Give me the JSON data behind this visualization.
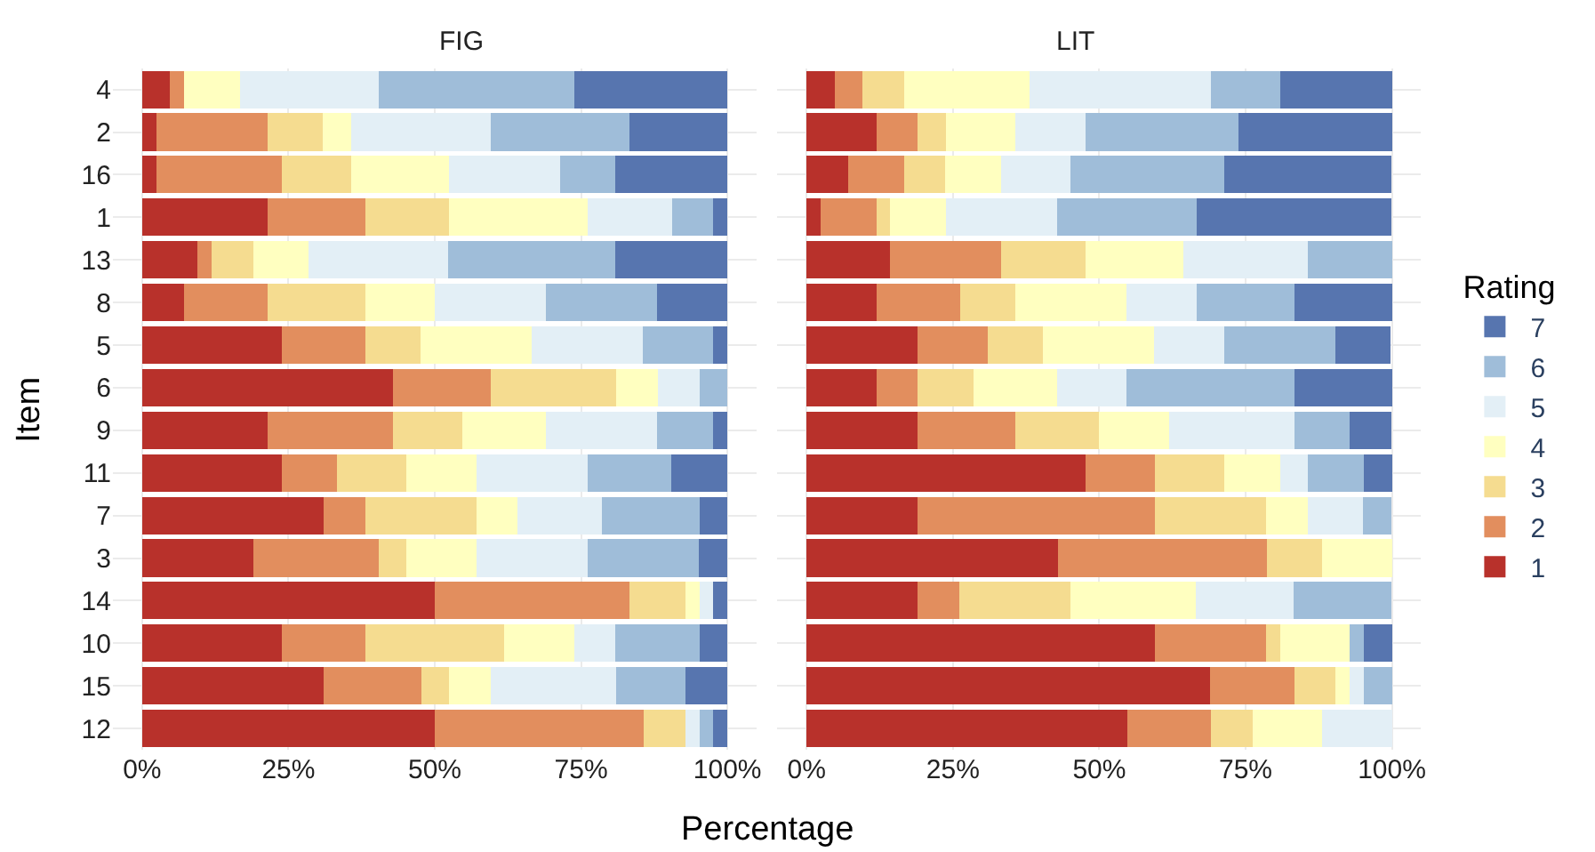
{
  "chart_data": [
    {
      "type": "bar",
      "title": "FIG",
      "legend": "right",
      "xlabel": "Percentage",
      "ylabel": "Item",
      "orientation": "horizontal",
      "stacked": true,
      "grid": true,
      "categories": [
        "4",
        "2",
        "16",
        "1",
        "13",
        "8",
        "5",
        "6",
        "9",
        "11",
        "7",
        "3",
        "14",
        "10",
        "15",
        "12"
      ],
      "xlim": [
        -5,
        105
      ],
      "xticks": [
        {
          "value": 0,
          "label": "0%"
        },
        {
          "value": 25,
          "label": "25%"
        },
        {
          "value": 50,
          "label": "50%"
        },
        {
          "value": 75,
          "label": "75%"
        },
        {
          "value": 100,
          "label": "100%"
        }
      ],
      "series": [
        {
          "name": "1",
          "color": "#b8312b",
          "values": [
            4.8,
            2.4,
            2.4,
            21.4,
            9.5,
            7.1,
            23.8,
            42.9,
            21.4,
            23.8,
            31.0,
            19.0,
            50.0,
            23.8,
            31.0,
            50.0
          ]
        },
        {
          "name": "2",
          "color": "#e28e5e",
          "values": [
            2.4,
            19.0,
            21.4,
            16.7,
            2.4,
            14.3,
            14.3,
            16.7,
            21.4,
            9.5,
            7.1,
            21.4,
            33.3,
            14.3,
            16.7,
            35.7
          ]
        },
        {
          "name": "3",
          "color": "#f5dc90",
          "values": [
            0,
            9.5,
            11.9,
            14.3,
            7.1,
            16.7,
            9.5,
            21.4,
            11.9,
            11.9,
            19.0,
            4.8,
            9.5,
            23.8,
            4.8,
            7.1
          ]
        },
        {
          "name": "4",
          "color": "#ffffc0",
          "values": [
            9.5,
            4.8,
            16.7,
            23.8,
            9.5,
            11.9,
            19.0,
            7.1,
            14.3,
            11.9,
            7.1,
            11.9,
            2.4,
            11.9,
            7.1,
            0
          ]
        },
        {
          "name": "5",
          "color": "#e3eff6",
          "values": [
            23.8,
            23.8,
            19.0,
            14.3,
            23.8,
            19.0,
            19.0,
            7.1,
            19.0,
            19.0,
            14.3,
            19.0,
            2.4,
            7.1,
            21.4,
            2.4
          ]
        },
        {
          "name": "6",
          "color": "#9fbdd9",
          "values": [
            33.3,
            23.8,
            9.5,
            7.1,
            28.6,
            19.0,
            11.9,
            4.8,
            9.5,
            14.3,
            16.7,
            19.0,
            0,
            14.3,
            11.9,
            2.4
          ]
        },
        {
          "name": "7",
          "color": "#5775af",
          "values": [
            26.2,
            16.7,
            19.0,
            2.4,
            19.0,
            11.9,
            2.4,
            0,
            2.4,
            9.5,
            4.8,
            4.8,
            2.4,
            4.8,
            7.1,
            2.4
          ]
        }
      ]
    },
    {
      "type": "bar",
      "title": "LIT",
      "legend_title": "Rating",
      "legend": "right",
      "orientation": "horizontal",
      "stacked": true,
      "grid": true,
      "tick_labels": "x",
      "categories": [
        "4",
        "2",
        "16",
        "1",
        "13",
        "8",
        "5",
        "6",
        "9",
        "11",
        "7",
        "3",
        "14",
        "10",
        "15",
        "12"
      ],
      "xlim": [
        -5,
        105
      ],
      "xticks": [
        {
          "value": 0,
          "label": "0%"
        },
        {
          "value": 25,
          "label": "25%"
        },
        {
          "value": 50,
          "label": "50%"
        },
        {
          "value": 75,
          "label": "75%"
        },
        {
          "value": 100,
          "label": "100%"
        }
      ],
      "series": [
        {
          "name": "1",
          "color": "#b8312b",
          "values": [
            4.8,
            11.9,
            7.1,
            2.4,
            14.3,
            11.9,
            19.0,
            11.9,
            19.0,
            47.6,
            19.0,
            42.9,
            19.0,
            59.5,
            69.0,
            54.8
          ]
        },
        {
          "name": "2",
          "color": "#e28e5e",
          "values": [
            4.8,
            7.1,
            9.5,
            9.5,
            19.0,
            14.3,
            11.9,
            7.1,
            16.7,
            11.9,
            40.5,
            35.7,
            7.1,
            19.0,
            14.3,
            14.3
          ]
        },
        {
          "name": "3",
          "color": "#f5dc90",
          "values": [
            7.1,
            4.8,
            7.1,
            2.4,
            14.3,
            9.5,
            9.5,
            9.5,
            14.3,
            11.9,
            19.0,
            9.5,
            19.0,
            2.4,
            7.1,
            7.1
          ]
        },
        {
          "name": "4",
          "color": "#ffffc0",
          "values": [
            21.4,
            11.9,
            9.5,
            9.5,
            16.7,
            19.0,
            19.0,
            14.3,
            11.9,
            9.5,
            7.1,
            11.9,
            21.4,
            11.9,
            2.4,
            11.9
          ]
        },
        {
          "name": "5",
          "color": "#e3eff6",
          "values": [
            31.0,
            11.9,
            11.9,
            19.0,
            21.4,
            11.9,
            11.9,
            11.9,
            21.4,
            4.8,
            9.5,
            0,
            16.7,
            0,
            2.4,
            11.9
          ]
        },
        {
          "name": "6",
          "color": "#9fbdd9",
          "values": [
            11.9,
            26.2,
            26.2,
            23.8,
            14.3,
            16.7,
            19.0,
            28.6,
            9.5,
            9.5,
            4.8,
            0,
            16.7,
            2.4,
            4.8,
            0
          ]
        },
        {
          "name": "7",
          "color": "#5775af",
          "values": [
            19.0,
            26.2,
            28.6,
            33.3,
            0,
            16.7,
            9.5,
            16.7,
            7.1,
            4.8,
            0,
            0,
            0,
            4.8,
            0,
            0
          ]
        }
      ]
    }
  ]
}
